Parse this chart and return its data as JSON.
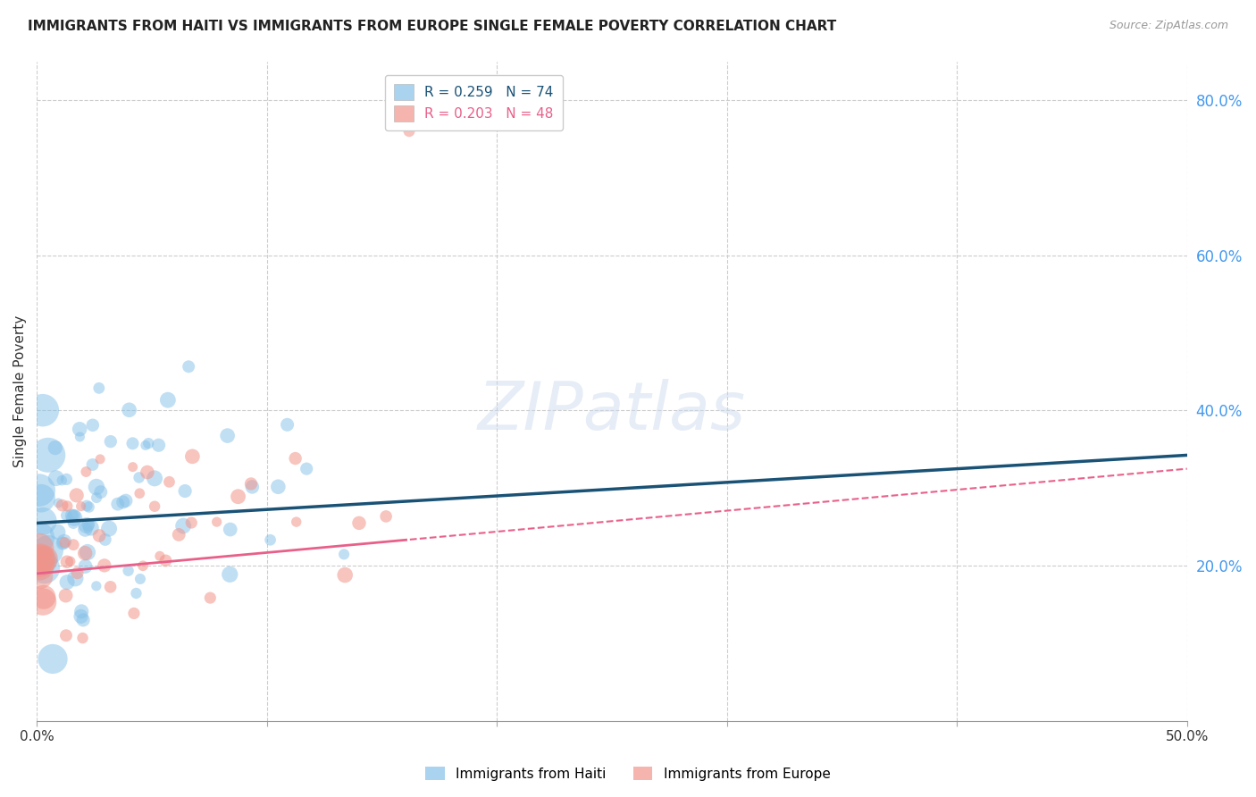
{
  "title": "IMMIGRANTS FROM HAITI VS IMMIGRANTS FROM EUROPE SINGLE FEMALE POVERTY CORRELATION CHART",
  "source": "Source: ZipAtlas.com",
  "ylabel": "Single Female Poverty",
  "watermark": "ZIPatlas",
  "xlim": [
    0.0,
    0.5
  ],
  "ylim": [
    0.0,
    0.85
  ],
  "yticks": [
    0.2,
    0.4,
    0.6,
    0.8
  ],
  "ytick_labels": [
    "20.0%",
    "40.0%",
    "60.0%",
    "80.0%"
  ],
  "xticks": [
    0.0,
    0.1,
    0.2,
    0.3,
    0.4,
    0.5
  ],
  "xtick_labels": [
    "0.0%",
    "",
    "",
    "",
    "",
    "50.0%"
  ],
  "haiti_R": 0.259,
  "haiti_N": 74,
  "europe_R": 0.203,
  "europe_N": 48,
  "haiti_color": "#85C1E9",
  "europe_color": "#F1948A",
  "haiti_line_color": "#1A5276",
  "europe_line_color": "#E8608A",
  "legend_label_haiti": "Immigrants from Haiti",
  "legend_label_europe": "Immigrants from Europe",
  "background_color": "#ffffff",
  "grid_color": "#cccccc",
  "title_color": "#222222",
  "right_axis_color": "#4499EE",
  "haiti_seed": 7,
  "europe_seed": 13
}
